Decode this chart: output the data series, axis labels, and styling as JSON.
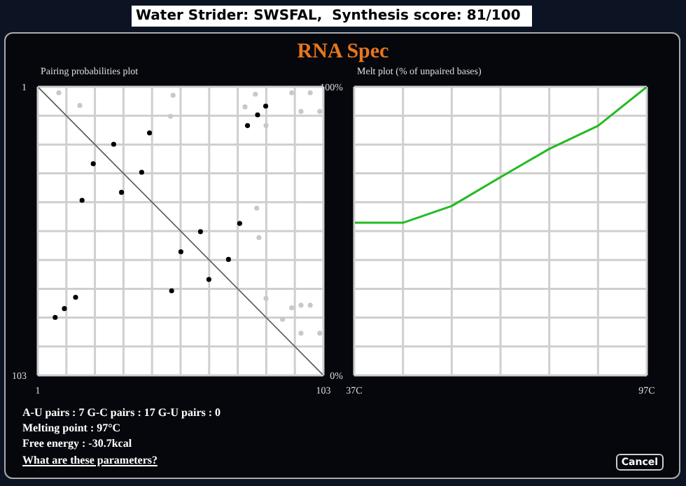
{
  "chart_data": [
    {
      "type": "scatter",
      "title": "Pairing probabilities plot",
      "annotations": [
        "Water Strider: SWSFAL,  Synthesis score: 81/100",
        "RNA Spec"
      ],
      "series": [
        {
          "type": "scatter",
          "color": "#000000",
          "x": [
            7.2,
            10.5,
            14.5,
            16.8,
            20.8,
            28.1,
            30.9,
            38.1,
            40.9,
            48.8,
            52.1,
            59.1,
            62.1,
            69.1,
            73.1,
            75.9,
            79.5,
            82.4
          ],
          "values": [
            82.5,
            79.4,
            75.4,
            41.1,
            28.2,
            21.3,
            38.3,
            31.2,
            17.3,
            73.1,
            59.3,
            52.2,
            69.1,
            62.0,
            49.3,
            14.7,
            10.9,
            7.8
          ]
        },
        {
          "type": "scatter",
          "color": "#c8c8c8",
          "x": [
            49.3,
            48.4,
            75.0,
            78.7,
            82.5,
            79.2,
            80.0,
            82.5,
            88.4,
            91.7,
            95.0,
            98.3,
            95.0,
            101.7,
            91.7,
            98.3,
            95.0,
            101.7,
            8.5,
            16.0
          ],
          "values": [
            4.0,
            11.4,
            8.1,
            3.6,
            14.7,
            43.9,
            54.3,
            75.8,
            83.2,
            79.1,
            78.2,
            78.2,
            88.1,
            88.1,
            3.1,
            3.1,
            9.7,
            9.7,
            3.1,
            7.6
          ]
        },
        {
          "type": "line",
          "color": "#555555",
          "x": [
            1,
            103
          ],
          "values": [
            1,
            103
          ],
          "marker": "none"
        }
      ],
      "xlim": [
        1,
        103
      ],
      "ylim": [
        103,
        1
      ],
      "xticks": [
        1,
        {
          "value": 11.2,
          "label": null
        },
        {
          "value": 21.4,
          "label": null
        },
        {
          "value": 31.6,
          "label": null
        },
        {
          "value": 41.8,
          "label": null
        },
        {
          "value": 52,
          "label": null
        },
        {
          "value": 62.2,
          "label": null
        },
        {
          "value": 72.4,
          "label": null
        },
        {
          "value": 82.6,
          "label": null
        },
        {
          "value": 92.8,
          "label": null
        },
        103
      ],
      "yticks": [
        1,
        {
          "value": 11.2,
          "label": null
        },
        {
          "value": 21.4,
          "label": null
        },
        {
          "value": 31.6,
          "label": null
        },
        {
          "value": 41.8,
          "label": null
        },
        {
          "value": 52,
          "label": null
        },
        {
          "value": 62.2,
          "label": null
        },
        {
          "value": 72.4,
          "label": null
        },
        {
          "value": 82.6,
          "label": null
        },
        {
          "value": 92.8,
          "label": null
        },
        103
      ],
      "grid": true,
      "marker": "circle"
    },
    {
      "type": "line",
      "title": "Melt plot (% of unpaired bases)",
      "annotations": [
        "A-U pairs : 7   G-C pairs : 17   G-U pairs : 0",
        "Melting point : 97°C",
        "Free energy : -30.7kcal",
        "What are these parameters?",
        "Cancel"
      ],
      "x": [
        37,
        47,
        57,
        67,
        77,
        87,
        97
      ],
      "series": [
        {
          "color": "#22bb22",
          "values": [
            52.9,
            52.9,
            58.7,
            68.7,
            78.5,
            86.5,
            100
          ]
        }
      ],
      "xlim": [
        37,
        97
      ],
      "ylim": [
        0,
        100
      ],
      "xticks": [
        {
          "value": 37,
          "label": "37C"
        },
        {
          "value": 47,
          "label": null
        },
        {
          "value": 57,
          "label": null
        },
        {
          "value": 67,
          "label": null
        },
        {
          "value": 77,
          "label": null
        },
        {
          "value": 87,
          "label": null
        },
        {
          "value": 97,
          "label": "97C"
        }
      ],
      "yticks": [
        {
          "value": 0,
          "label": "0%"
        },
        {
          "value": 10,
          "label": null
        },
        {
          "value": 20,
          "label": null
        },
        {
          "value": 30,
          "label": null
        },
        {
          "value": 40,
          "label": null
        },
        {
          "value": 50,
          "label": null
        },
        {
          "value": 60,
          "label": null
        },
        {
          "value": 70,
          "label": null
        },
        {
          "value": 80,
          "label": null
        },
        {
          "value": 90,
          "label": null
        },
        {
          "value": 100,
          "label": "100%"
        }
      ],
      "grid": true,
      "marker": "none",
      "line_style": "solid"
    }
  ]
}
